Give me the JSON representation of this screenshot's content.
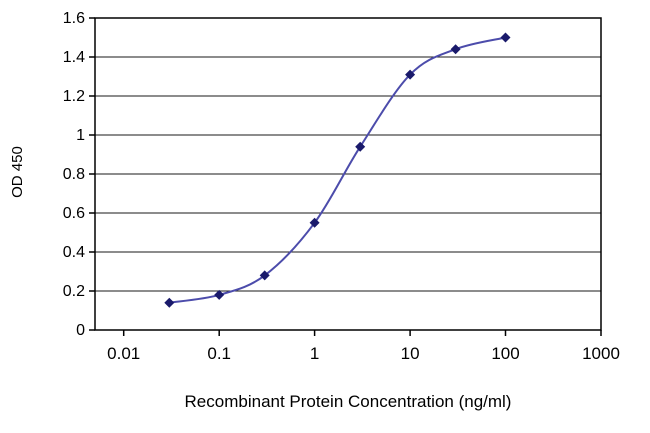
{
  "chart_data": {
    "type": "line",
    "title": "",
    "xlabel": "Recombinant Protein Concentration (ng/ml)",
    "ylabel": "OD 450",
    "x_scale": "log",
    "xlim": [
      0.005,
      1000
    ],
    "ylim": [
      0,
      1.6
    ],
    "x": [
      0.03,
      0.1,
      0.3,
      1,
      3,
      10,
      30,
      100
    ],
    "y": [
      0.14,
      0.18,
      0.28,
      0.55,
      0.94,
      1.31,
      1.44,
      1.5
    ],
    "x_ticks": [
      0.01,
      0.1,
      1,
      10,
      100,
      1000
    ],
    "x_tick_labels": [
      "0.01",
      "0.1",
      "1",
      "10",
      "100",
      "1000"
    ],
    "y_ticks": [
      0,
      0.2,
      0.4,
      0.6,
      0.8,
      1,
      1.2,
      1.4,
      1.6
    ],
    "y_tick_labels": [
      "0",
      "0.2",
      "0.4",
      "0.6",
      "0.8",
      "1",
      "1.2",
      "1.4",
      "1.6"
    ],
    "grid": "horizontal",
    "legend": "none",
    "marker": "diamond",
    "line_color": "#4c4cab",
    "marker_color": "#1a1a6b",
    "grid_color": "#1a1a1a",
    "axis_color": "#000000"
  }
}
